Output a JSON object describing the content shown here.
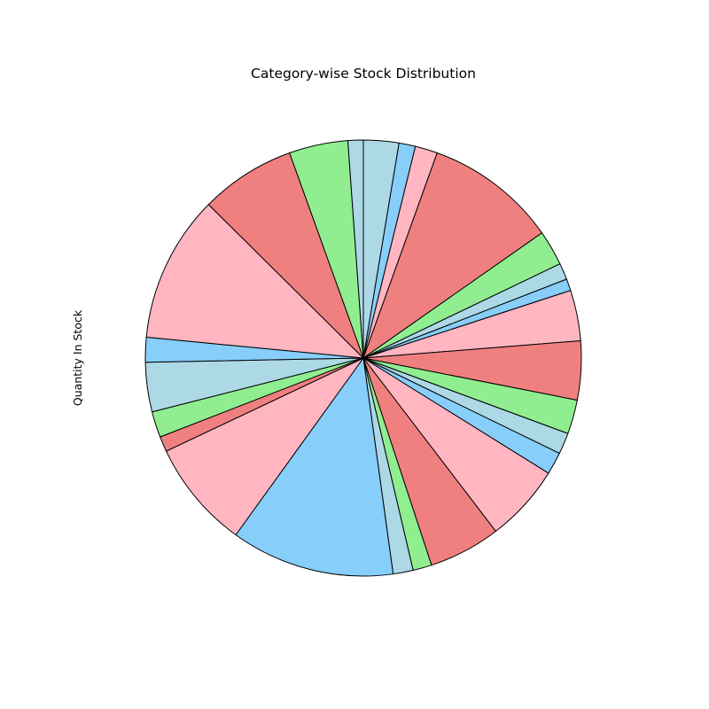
{
  "chart_data": {
    "type": "pie",
    "title": "Category-wise Stock Distribution",
    "ylabel": "Quantity In Stock",
    "start_angle_deg": 90,
    "direction": "clockwise",
    "colors": [
      "#add8e6",
      "#87cefa",
      "#ffb6c1",
      "#f08080",
      "#90ee90"
    ],
    "values": [
      3.0,
      1.4,
      1.9,
      11.2,
      3.0,
      1.4,
      1.0,
      4.3,
      5.0,
      2.9,
      1.8,
      1.9,
      6.6,
      6.1,
      1.6,
      1.7,
      13.9,
      9.2,
      1.3,
      2.2,
      4.2,
      2.1,
      12.5,
      8.1,
      5.0,
      1.3
    ]
  }
}
